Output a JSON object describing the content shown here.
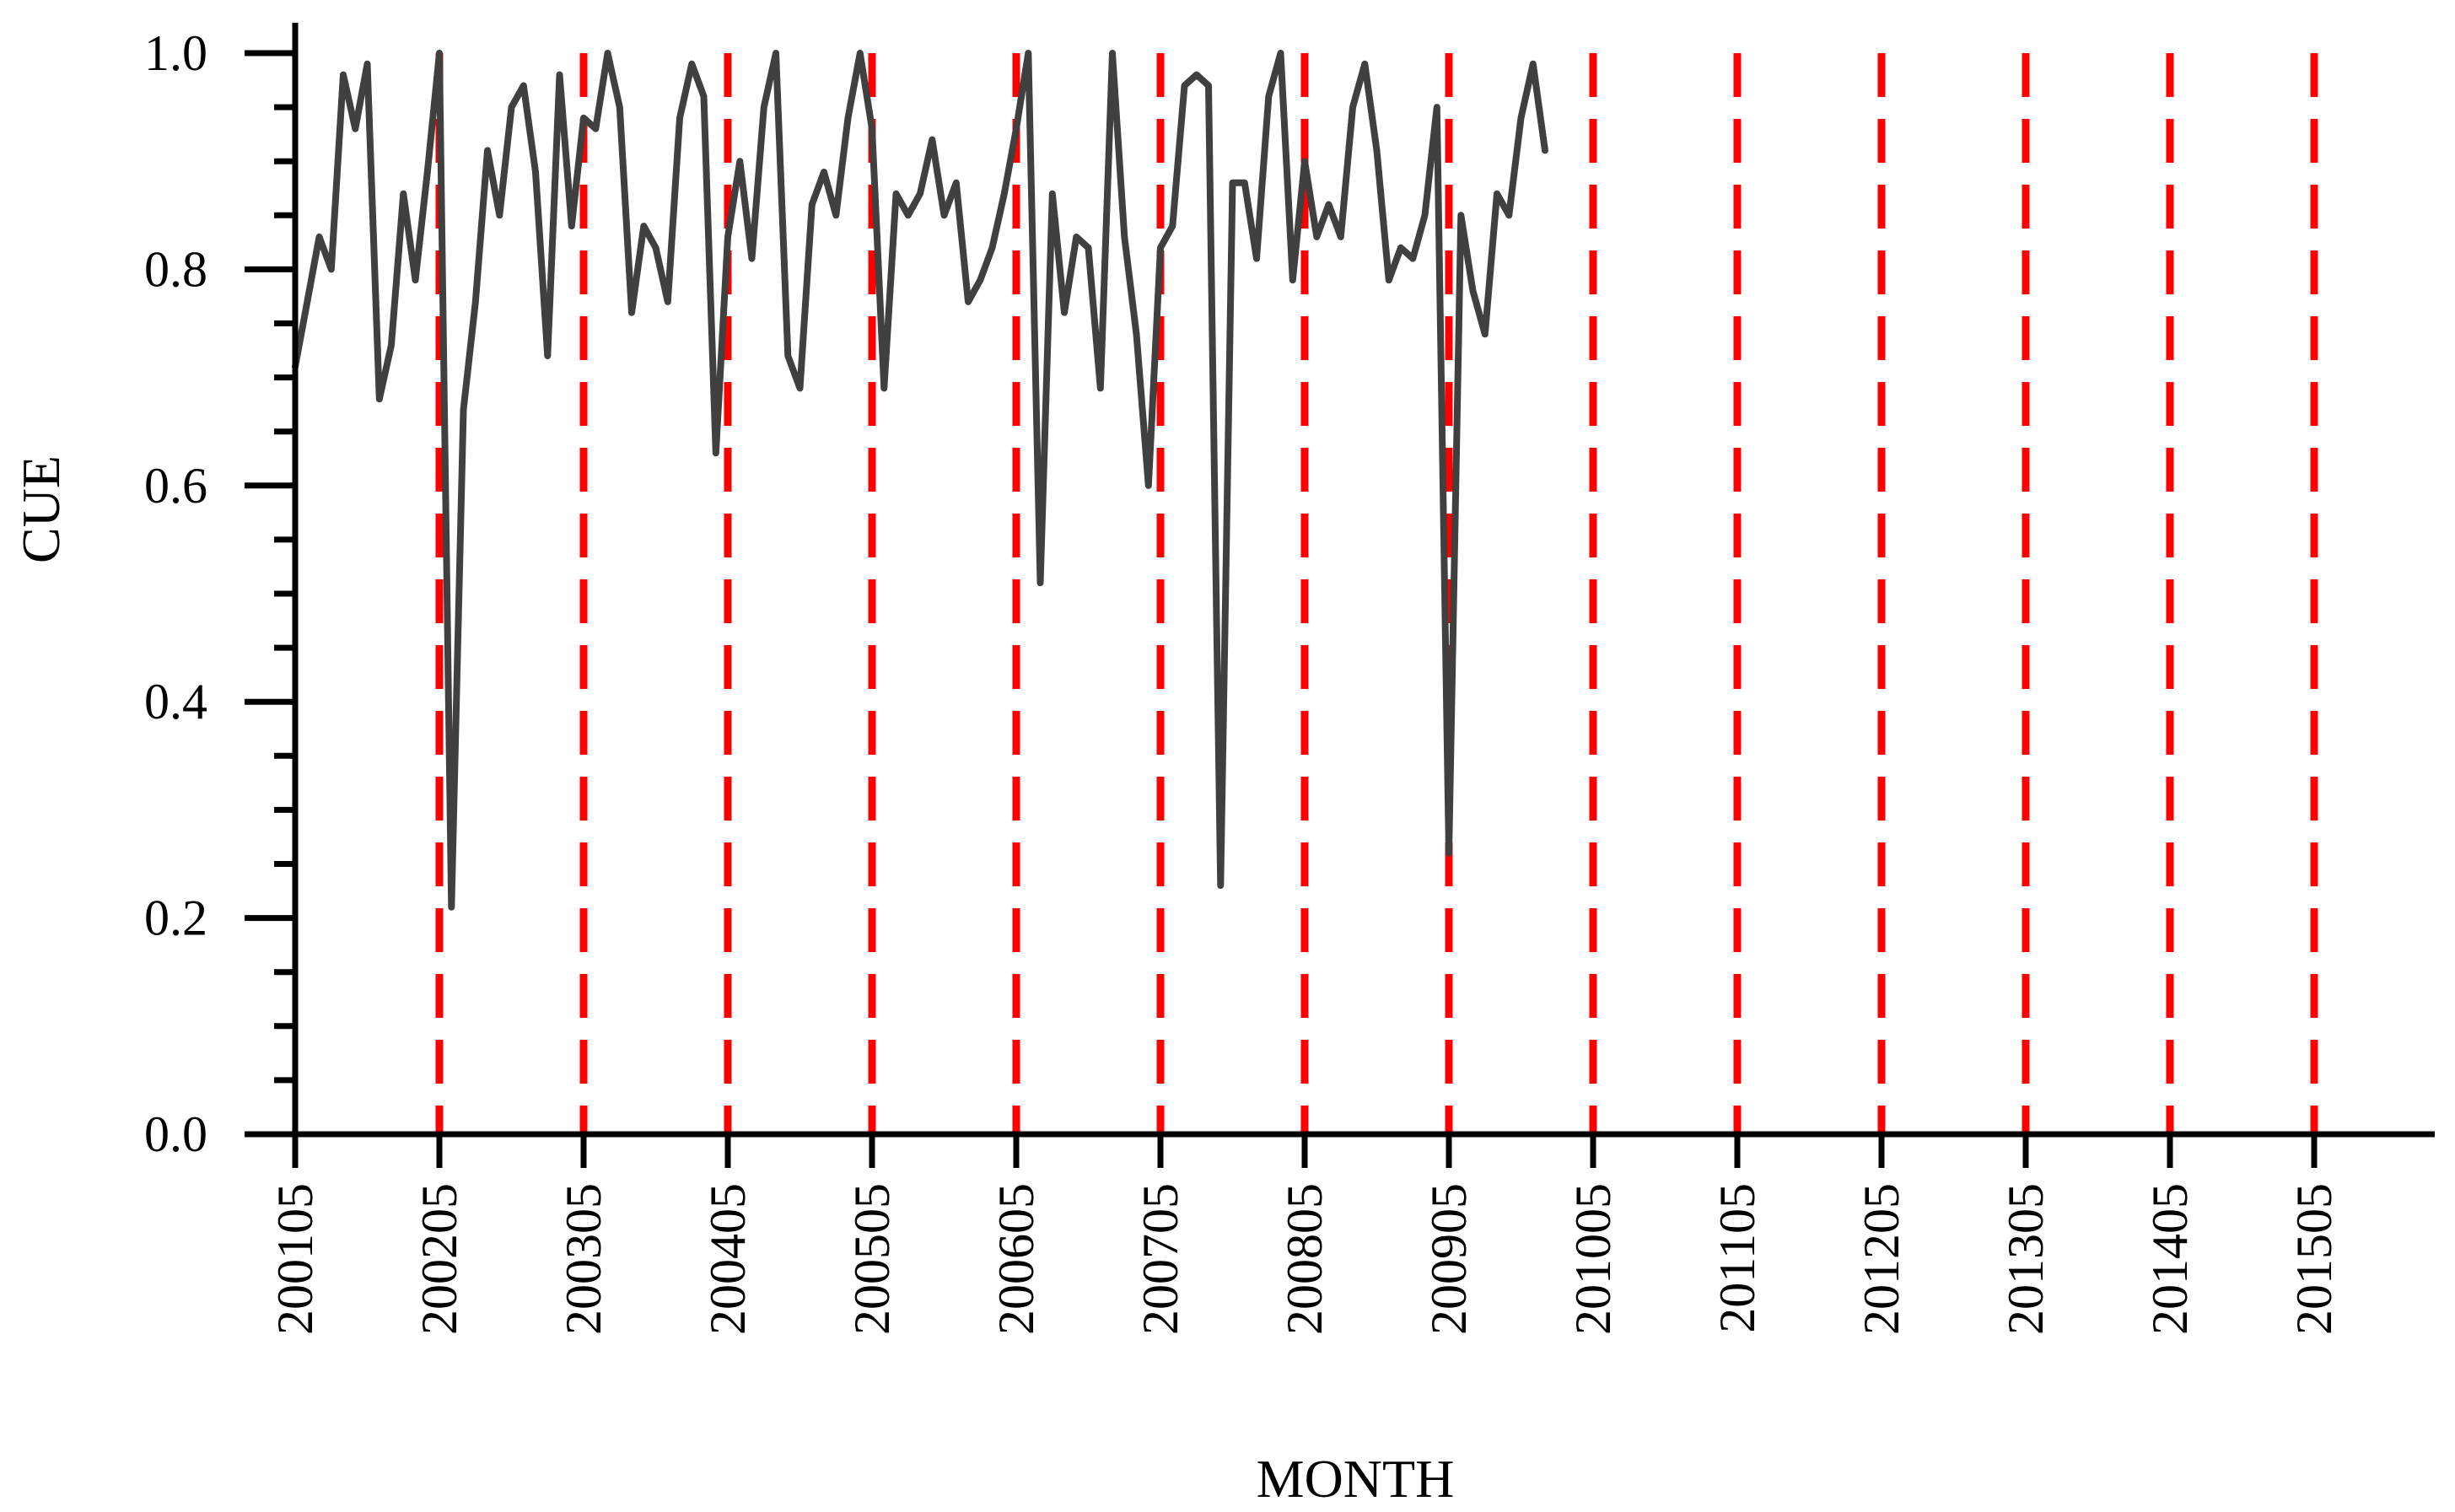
{
  "chart_data": {
    "type": "line",
    "title": "",
    "xlabel": "MONTH",
    "ylabel": "CUE",
    "ylim": [
      0,
      1
    ],
    "y_ticks": [
      "0.0",
      "0.2",
      "0.4",
      "0.6",
      "0.8",
      "1.0"
    ],
    "x_tick_labels": [
      "200105",
      "200205",
      "200305",
      "200405",
      "200505",
      "200605",
      "200705",
      "200805",
      "200905",
      "201005",
      "201105",
      "201205",
      "201305",
      "201405",
      "201505"
    ],
    "vertical_markers": [
      "200205",
      "200305",
      "200405",
      "200505",
      "200605",
      "200705",
      "200805",
      "200905",
      "201005",
      "201105",
      "201205",
      "201305",
      "201405",
      "201505"
    ],
    "colors": {
      "line": "#404040",
      "marker_lines": "#ff0000",
      "axis": "#000000"
    },
    "series": [
      {
        "name": "CUE",
        "start_month": "200105",
        "values": [
          0.71,
          0.77,
          0.83,
          0.8,
          0.98,
          0.93,
          0.99,
          0.68,
          0.73,
          0.87,
          0.79,
          0.89,
          1.0,
          0.21,
          0.67,
          0.77,
          0.91,
          0.85,
          0.95,
          0.97,
          0.89,
          0.72,
          0.98,
          0.84,
          0.94,
          0.93,
          1.0,
          0.95,
          0.76,
          0.84,
          0.82,
          0.77,
          0.94,
          0.99,
          0.96,
          0.63,
          0.83,
          0.9,
          0.81,
          0.95,
          1.0,
          0.72,
          0.69,
          0.86,
          0.89,
          0.85,
          0.94,
          1.0,
          0.93,
          0.69,
          0.87,
          0.85,
          0.87,
          0.92,
          0.85,
          0.88,
          0.77,
          0.79,
          0.82,
          0.87,
          0.93,
          1.0,
          0.51,
          0.87,
          0.76,
          0.83,
          0.82,
          0.69,
          1.0,
          0.83,
          0.74,
          0.6,
          0.82,
          0.84,
          0.97,
          0.98,
          0.97,
          0.23,
          0.88,
          0.88,
          0.81,
          0.96,
          1.0,
          0.79,
          0.9,
          0.83,
          0.86,
          0.83,
          0.95,
          0.99,
          0.91,
          0.79,
          0.82,
          0.81,
          0.85,
          0.95,
          0.26,
          0.85,
          0.78,
          0.74,
          0.87,
          0.85,
          0.94,
          0.99,
          0.91
        ]
      }
    ]
  }
}
